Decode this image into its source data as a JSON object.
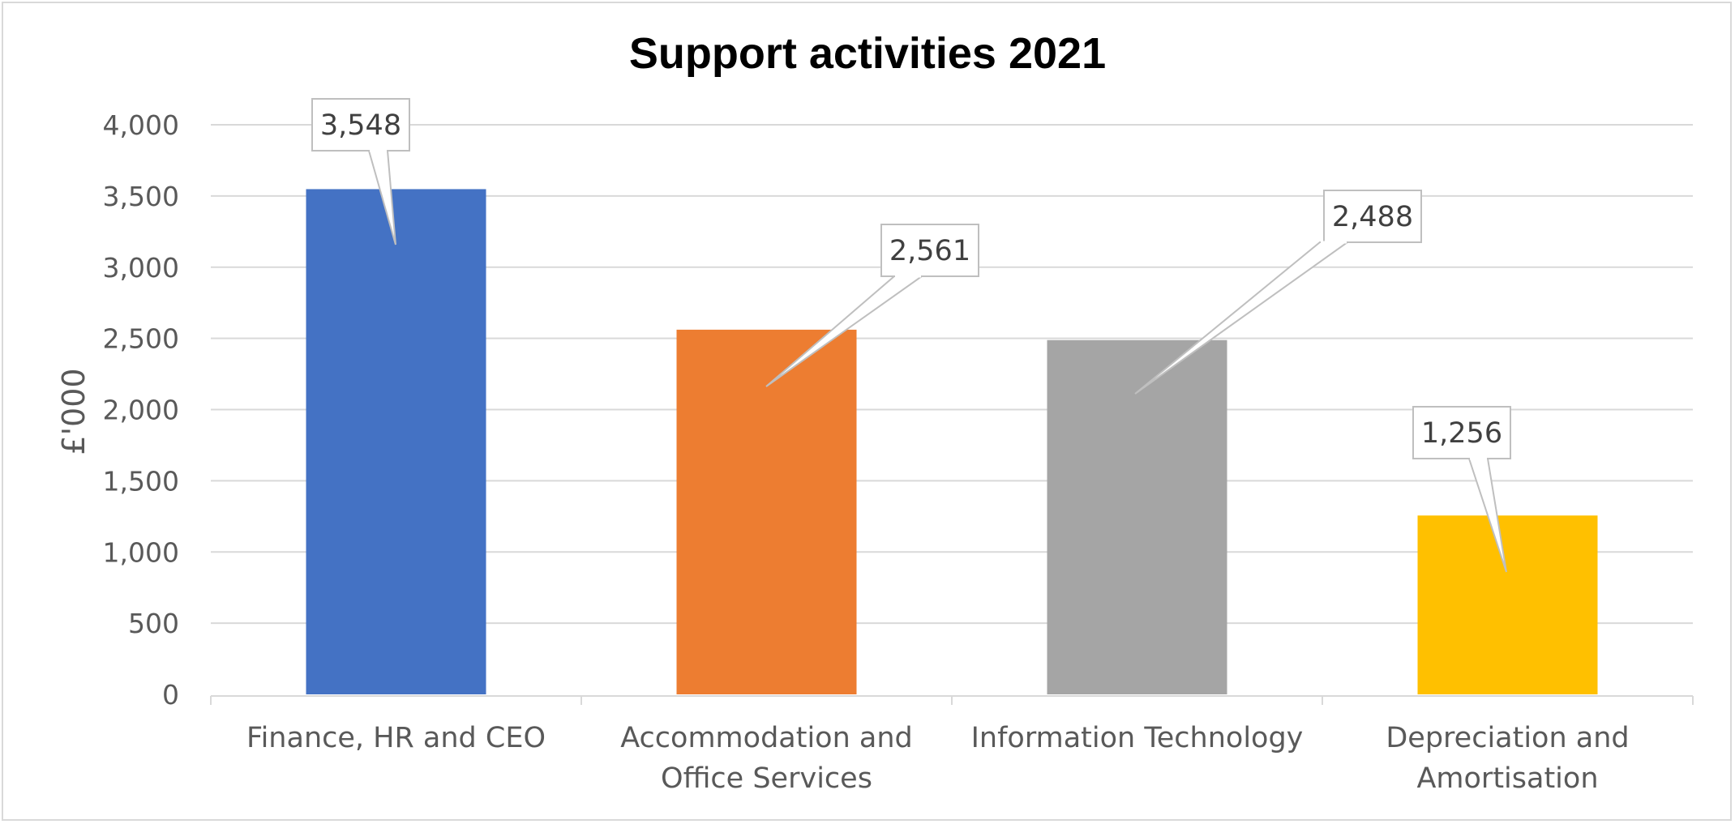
{
  "chart_data": {
    "type": "bar",
    "title": "Support activities 2021",
    "xlabel": "",
    "ylabel": "£'000",
    "ylim": [
      0,
      4000
    ],
    "yticks": [
      0,
      500,
      1000,
      1500,
      2000,
      2500,
      3000,
      3500,
      4000
    ],
    "ytick_labels": [
      "0",
      "500",
      "1,000",
      "1,500",
      "2,000",
      "2,500",
      "3,000",
      "3,500",
      "4,000"
    ],
    "grid": true,
    "legend": "none",
    "categories": [
      [
        "Finance, HR and CEO"
      ],
      [
        "Accommodation and",
        "Office Services"
      ],
      [
        "Information Technology"
      ],
      [
        "Depreciation and",
        "Amortisation"
      ]
    ],
    "values": [
      3548,
      2561,
      2488,
      1256
    ],
    "data_labels": [
      "3,548",
      "2,561",
      "2,488",
      "1,256"
    ],
    "colors": [
      "#4472C4",
      "#ED7D31",
      "#A5A5A5",
      "#FFC000"
    ]
  }
}
